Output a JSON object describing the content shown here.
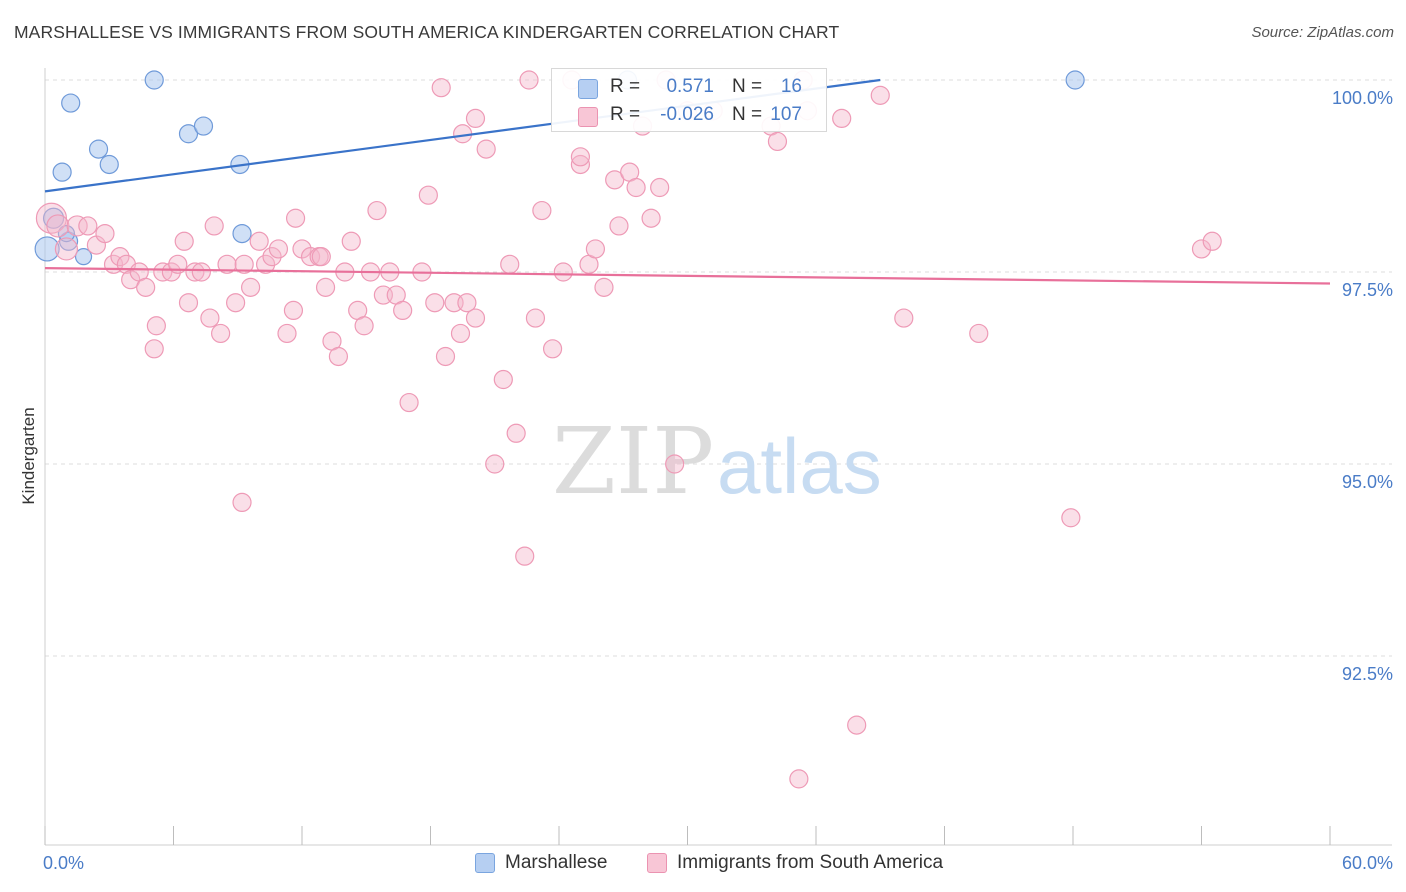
{
  "title": "MARSHALLESE VS IMMIGRANTS FROM SOUTH AMERICA KINDERGARTEN CORRELATION CHART",
  "source": "Source: ZipAtlas.com",
  "watermark": {
    "zip": "ZIP",
    "atlas": "atlas"
  },
  "colors": {
    "blue": "#5b8fd6",
    "blue_fill": "#a9c6ef",
    "pink": "#e8709a",
    "pink_fill": "#f5b8cc",
    "axis_text": "#4a7cc7",
    "grid": "#dddddd"
  },
  "stats": [
    {
      "swatch": "blue",
      "r_label": "R =",
      "r_value": "0.571",
      "n_label": "N =",
      "n_value": "16"
    },
    {
      "swatch": "pink",
      "r_label": "R =",
      "r_value": "-0.026",
      "n_label": "N =",
      "n_value": "107"
    }
  ],
  "legend": [
    {
      "label": "Marshallese",
      "swatch": "blue"
    },
    {
      "label": "Immigrants from South America",
      "swatch": "pink"
    }
  ],
  "chart_data": {
    "type": "scatter",
    "title": "MARSHALLESE VS IMMIGRANTS FROM SOUTH AMERICA KINDERGARTEN CORRELATION CHART",
    "xlabel": "",
    "ylabel": "Kindergarten",
    "xlim": [
      0,
      60
    ],
    "ylim": [
      90.2,
      100.3
    ],
    "x_tick_labels": [
      {
        "value": 0,
        "label": "0.0%"
      },
      {
        "value": 60,
        "label": "60.0%"
      }
    ],
    "x_minor_ticks": [
      0,
      6,
      12,
      18,
      24,
      30,
      36,
      42,
      48,
      54,
      60
    ],
    "y_ticks": [
      {
        "value": 100.0,
        "label": "100.0%"
      },
      {
        "value": 97.5,
        "label": "97.5%"
      },
      {
        "value": 95.0,
        "label": "95.0%"
      },
      {
        "value": 92.5,
        "label": "92.5%"
      }
    ],
    "series": [
      {
        "name": "Marshallese",
        "color": "blue",
        "trend": {
          "x": [
            0,
            39
          ],
          "y": [
            98.55,
            100.0
          ]
        },
        "points": [
          [
            0.1,
            97.8,
            12
          ],
          [
            0.4,
            98.2,
            10
          ],
          [
            0.8,
            98.8,
            9
          ],
          [
            1.2,
            99.7,
            9
          ],
          [
            1.1,
            97.9,
            9
          ],
          [
            2.5,
            99.1,
            9
          ],
          [
            3.0,
            98.9,
            9
          ],
          [
            1.8,
            97.7,
            8
          ],
          [
            5.1,
            100.0,
            9
          ],
          [
            6.7,
            99.3,
            9
          ],
          [
            7.4,
            99.4,
            9
          ],
          [
            9.1,
            98.9,
            9
          ],
          [
            9.2,
            98.0,
            9
          ],
          [
            27.2,
            100.0,
            9
          ],
          [
            48.1,
            100.0,
            9
          ],
          [
            1.0,
            98.0,
            8
          ]
        ]
      },
      {
        "name": "Immigrants from South America",
        "color": "pink",
        "trend": {
          "x": [
            0,
            60
          ],
          "y": [
            97.55,
            97.35
          ]
        },
        "points": [
          [
            0.3,
            98.2,
            15
          ],
          [
            0.6,
            98.1,
            11
          ],
          [
            1.0,
            97.8,
            11
          ],
          [
            1.5,
            98.1,
            10
          ],
          [
            2.0,
            98.1,
            9
          ],
          [
            2.4,
            97.85,
            9
          ],
          [
            2.8,
            98.0,
            9
          ],
          [
            3.2,
            97.6,
            9
          ],
          [
            3.5,
            97.7,
            9
          ],
          [
            3.8,
            97.6,
            9
          ],
          [
            4.0,
            97.4,
            9
          ],
          [
            4.4,
            97.5,
            9
          ],
          [
            4.7,
            97.3,
            9
          ],
          [
            5.2,
            96.8,
            9
          ],
          [
            5.1,
            96.5,
            9
          ],
          [
            5.5,
            97.5,
            9
          ],
          [
            5.9,
            97.5,
            9
          ],
          [
            6.2,
            97.6,
            9
          ],
          [
            6.5,
            97.9,
            9
          ],
          [
            6.7,
            97.1,
            9
          ],
          [
            7.0,
            97.5,
            9
          ],
          [
            7.3,
            97.5,
            9
          ],
          [
            7.7,
            96.9,
            9
          ],
          [
            7.9,
            98.1,
            9
          ],
          [
            8.2,
            96.7,
            9
          ],
          [
            8.5,
            97.6,
            9
          ],
          [
            8.9,
            97.1,
            9
          ],
          [
            9.3,
            97.6,
            9
          ],
          [
            9.6,
            97.3,
            9
          ],
          [
            10.0,
            97.9,
            9
          ],
          [
            10.3,
            97.6,
            9
          ],
          [
            10.6,
            97.7,
            9
          ],
          [
            10.9,
            97.8,
            9
          ],
          [
            11.3,
            96.7,
            9
          ],
          [
            11.6,
            97.0,
            9
          ],
          [
            11.7,
            98.2,
            9
          ],
          [
            12.0,
            97.8,
            9
          ],
          [
            12.4,
            97.7,
            9
          ],
          [
            12.8,
            97.7,
            9
          ],
          [
            13.1,
            97.3,
            9
          ],
          [
            13.4,
            96.6,
            9
          ],
          [
            13.7,
            96.4,
            9
          ],
          [
            14.0,
            97.5,
            9
          ],
          [
            14.3,
            97.9,
            9
          ],
          [
            14.6,
            97.0,
            9
          ],
          [
            14.9,
            96.8,
            9
          ],
          [
            15.2,
            97.5,
            9
          ],
          [
            15.5,
            98.3,
            9
          ],
          [
            15.8,
            97.2,
            9
          ],
          [
            16.1,
            97.5,
            9
          ],
          [
            16.4,
            97.2,
            9
          ],
          [
            16.7,
            97.0,
            9
          ],
          [
            17.0,
            95.8,
            9
          ],
          [
            17.6,
            97.5,
            9
          ],
          [
            17.9,
            98.5,
            9
          ],
          [
            18.2,
            97.1,
            9
          ],
          [
            18.5,
            99.9,
            9
          ],
          [
            18.7,
            96.4,
            9
          ],
          [
            19.1,
            97.1,
            9
          ],
          [
            19.4,
            96.7,
            9
          ],
          [
            19.7,
            97.1,
            9
          ],
          [
            20.1,
            96.9,
            9
          ],
          [
            20.6,
            99.1,
            9
          ],
          [
            21.0,
            95.0,
            9
          ],
          [
            21.4,
            96.1,
            9
          ],
          [
            21.7,
            97.6,
            9
          ],
          [
            22.0,
            95.4,
            9
          ],
          [
            22.4,
            93.8,
            9
          ],
          [
            22.6,
            100.0,
            9
          ],
          [
            22.9,
            96.9,
            9
          ],
          [
            23.2,
            98.3,
            9
          ],
          [
            23.7,
            96.5,
            9
          ],
          [
            24.2,
            97.5,
            9
          ],
          [
            24.6,
            100.0,
            9
          ],
          [
            25.0,
            98.9,
            9
          ],
          [
            25.4,
            97.6,
            9
          ],
          [
            25.7,
            97.8,
            9
          ],
          [
            26.1,
            97.3,
            9
          ],
          [
            26.6,
            98.7,
            9
          ],
          [
            26.8,
            98.1,
            9
          ],
          [
            27.3,
            98.8,
            9
          ],
          [
            27.6,
            98.6,
            9
          ],
          [
            27.9,
            99.4,
            9
          ],
          [
            28.3,
            98.2,
            9
          ],
          [
            28.7,
            98.6,
            9
          ],
          [
            29.0,
            100.0,
            9
          ],
          [
            29.4,
            95.0,
            9
          ],
          [
            30.0,
            99.6,
            9
          ],
          [
            31.2,
            99.6,
            9
          ],
          [
            33.9,
            99.4,
            9
          ],
          [
            34.2,
            99.2,
            9
          ],
          [
            35.4,
            100.0,
            9
          ],
          [
            35.6,
            99.6,
            9
          ],
          [
            37.2,
            99.5,
            9
          ],
          [
            37.9,
            91.6,
            9
          ],
          [
            39.0,
            99.8,
            9
          ],
          [
            40.1,
            96.9,
            9
          ],
          [
            43.6,
            96.7,
            9
          ],
          [
            47.9,
            94.3,
            9
          ],
          [
            54.0,
            97.8,
            9
          ],
          [
            54.5,
            97.9,
            9
          ],
          [
            35.2,
            90.9,
            9
          ],
          [
            25.0,
            99.0,
            9
          ],
          [
            9.2,
            94.5,
            9
          ],
          [
            12.9,
            97.7,
            9
          ],
          [
            19.5,
            99.3,
            9
          ],
          [
            20.1,
            99.5,
            9
          ]
        ]
      }
    ]
  }
}
